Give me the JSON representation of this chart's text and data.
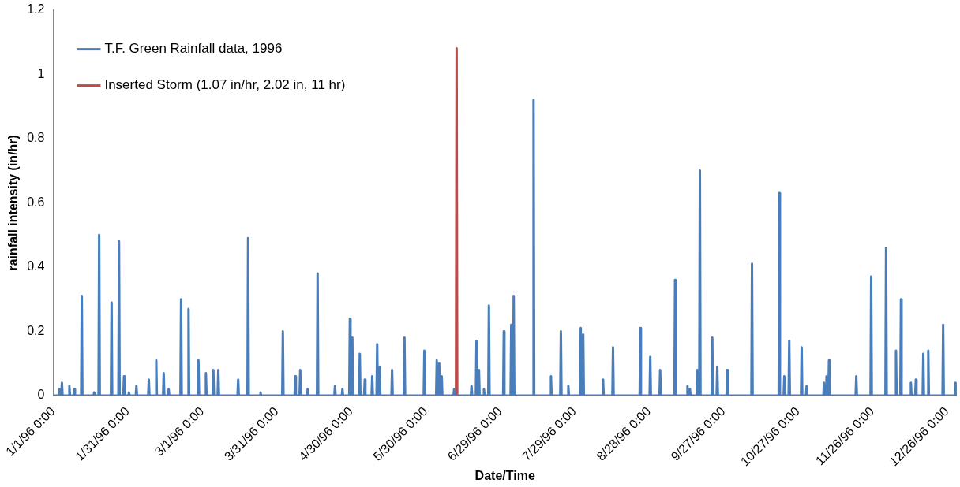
{
  "chart_data": {
    "type": "line",
    "xlabel": "Date/Time",
    "ylabel": "rainfall intensity (in/hr)",
    "xlim": [
      "1996-01-01",
      "1996-12-30"
    ],
    "ylim": [
      0,
      1.2
    ],
    "xticks": [
      {
        "value": "1996-01-01",
        "label": "1/1/96 0:00"
      },
      {
        "value": "1996-01-31",
        "label": "1/31/96 0:00"
      },
      {
        "value": "1996-03-01",
        "label": "3/1/96 0:00"
      },
      {
        "value": "1996-03-31",
        "label": "3/31/96 0:00"
      },
      {
        "value": "1996-04-30",
        "label": "4/30/96 0:00"
      },
      {
        "value": "1996-05-30",
        "label": "5/30/96 0:00"
      },
      {
        "value": "1996-06-29",
        "label": "6/29/96 0:00"
      },
      {
        "value": "1996-07-29",
        "label": "7/29/96 0:00"
      },
      {
        "value": "1996-08-28",
        "label": "8/28/96 0:00"
      },
      {
        "value": "1996-09-27",
        "label": "9/27/96 0:00"
      },
      {
        "value": "1996-10-27",
        "label": "10/27/96 0:00"
      },
      {
        "value": "1996-11-26",
        "label": "11/26/96 0:00"
      },
      {
        "value": "1996-12-26",
        "label": "12/26/96 0:00"
      }
    ],
    "yticks": [
      0,
      0.2,
      0.4,
      0.6,
      0.8,
      1,
      1.2
    ],
    "grid": false,
    "legend": "top left",
    "marker": "none",
    "line_style": "solid",
    "series": [
      {
        "name": "T.F. Green Rainfall data, 1996",
        "color": "#4a7ebb",
        "x": [
          "1996-01-01T00:00",
          "1996-01-03T06:00",
          "1996-01-03T12:00",
          "1996-01-03T18:00",
          "1996-01-04T06:00",
          "1996-01-04T12:00",
          "1996-01-04T18:00",
          "1996-01-07T06:00",
          "1996-01-07T12:00",
          "1996-01-07T18:00",
          "1996-01-09T06:00",
          "1996-01-09T12:00",
          "1996-01-09T18:00",
          "1996-01-12T06:00",
          "1996-01-12T12:00",
          "1996-01-12T18:00",
          "1996-01-17T06:00",
          "1996-01-17T12:00",
          "1996-01-17T18:00",
          "1996-01-19T06:00",
          "1996-01-19T12:00",
          "1996-01-19T18:00",
          "1996-01-24T06:00",
          "1996-01-24T12:00",
          "1996-01-24T18:00",
          "1996-01-27T06:00",
          "1996-01-27T12:00",
          "1996-01-27T18:00",
          "1996-01-29T06:00",
          "1996-01-29T12:00",
          "1996-01-29T18:00",
          "1996-01-31T06:00",
          "1996-01-31T12:00",
          "1996-01-31T18:00",
          "1996-02-03T06:00",
          "1996-02-03T12:00",
          "1996-02-03T18:00",
          "1996-02-08T06:00",
          "1996-02-08T12:00",
          "1996-02-08T18:00",
          "1996-02-11T06:00",
          "1996-02-11T12:00",
          "1996-02-11T18:00",
          "1996-02-14T06:00",
          "1996-02-14T12:00",
          "1996-02-14T18:00",
          "1996-02-16T06:00",
          "1996-02-16T12:00",
          "1996-02-16T18:00",
          "1996-02-21T06:00",
          "1996-02-21T12:00",
          "1996-02-21T18:00",
          "1996-02-24T06:00",
          "1996-02-24T12:00",
          "1996-02-24T18:00",
          "1996-02-28T06:00",
          "1996-02-28T12:00",
          "1996-02-28T18:00",
          "1996-03-02T06:00",
          "1996-03-02T12:00",
          "1996-03-02T18:00",
          "1996-03-05T06:00",
          "1996-03-05T12:00",
          "1996-03-05T18:00",
          "1996-03-07T06:00",
          "1996-03-07T12:00",
          "1996-03-07T18:00",
          "1996-03-15T06:00",
          "1996-03-15T12:00",
          "1996-03-15T18:00",
          "1996-03-19T06:00",
          "1996-03-19T12:00",
          "1996-03-19T18:00",
          "1996-03-24T06:00",
          "1996-03-24T12:00",
          "1996-03-24T18:00",
          "1996-04-02T06:00",
          "1996-04-02T12:00",
          "1996-04-02T18:00",
          "1996-04-07T06:00",
          "1996-04-07T12:00",
          "1996-04-07T18:00",
          "1996-04-09T06:00",
          "1996-04-09T12:00",
          "1996-04-09T18:00",
          "1996-04-12T06:00",
          "1996-04-12T12:00",
          "1996-04-12T18:00",
          "1996-04-16T06:00",
          "1996-04-16T12:00",
          "1996-04-16T18:00",
          "1996-04-23T06:00",
          "1996-04-23T12:00",
          "1996-04-23T18:00",
          "1996-04-26T06:00",
          "1996-04-26T12:00",
          "1996-04-26T18:00",
          "1996-04-29T06:00",
          "1996-04-29T12:00",
          "1996-04-29T18:00",
          "1996-04-30T06:00",
          "1996-04-30T12:00",
          "1996-04-30T18:00",
          "1996-05-03T06:00",
          "1996-05-03T12:00",
          "1996-05-03T18:00",
          "1996-05-05T06:00",
          "1996-05-05T12:00",
          "1996-05-05T18:00",
          "1996-05-08T06:00",
          "1996-05-08T12:00",
          "1996-05-08T18:00",
          "1996-05-10T06:00",
          "1996-05-10T12:00",
          "1996-05-10T18:00",
          "1996-05-11T06:00",
          "1996-05-11T12:00",
          "1996-05-11T18:00",
          "1996-05-16T06:00",
          "1996-05-16T12:00",
          "1996-05-16T18:00",
          "1996-05-21T06:00",
          "1996-05-21T12:00",
          "1996-05-21T18:00",
          "1996-05-29T06:00",
          "1996-05-29T12:00",
          "1996-05-29T18:00",
          "1996-06-03T06:00",
          "1996-06-03T12:00",
          "1996-06-03T18:00",
          "1996-06-04T06:00",
          "1996-06-04T12:00",
          "1996-06-04T18:00",
          "1996-06-05T06:00",
          "1996-06-05T12:00",
          "1996-06-05T18:00",
          "1996-06-10T06:00",
          "1996-06-10T12:00",
          "1996-06-10T18:00",
          "1996-06-17T06:00",
          "1996-06-17T12:00",
          "1996-06-17T18:00",
          "1996-06-19T06:00",
          "1996-06-19T12:00",
          "1996-06-19T18:00",
          "1996-06-20T06:00",
          "1996-06-20T12:00",
          "1996-06-20T18:00",
          "1996-06-22T06:00",
          "1996-06-22T12:00",
          "1996-06-22T18:00",
          "1996-06-24T06:00",
          "1996-06-24T12:00",
          "1996-06-24T18:00",
          "1996-06-30T06:00",
          "1996-06-30T12:00",
          "1996-06-30T18:00",
          "1996-07-03T06:00",
          "1996-07-03T12:00",
          "1996-07-03T18:00",
          "1996-07-04T06:00",
          "1996-07-04T12:00",
          "1996-07-04T18:00",
          "1996-07-12T06:00",
          "1996-07-12T12:00",
          "1996-07-12T18:00",
          "1996-07-19T06:00",
          "1996-07-19T12:00",
          "1996-07-19T18:00",
          "1996-07-23T06:00",
          "1996-07-23T12:00",
          "1996-07-23T18:00",
          "1996-07-26T06:00",
          "1996-07-26T12:00",
          "1996-07-26T18:00",
          "1996-07-31T06:00",
          "1996-07-31T12:00",
          "1996-07-31T18:00",
          "1996-08-01T06:00",
          "1996-08-01T12:00",
          "1996-08-01T18:00",
          "1996-08-09T06:00",
          "1996-08-09T12:00",
          "1996-08-09T18:00",
          "1996-08-13T06:00",
          "1996-08-13T12:00",
          "1996-08-13T18:00",
          "1996-08-24T06:00",
          "1996-08-24T12:00",
          "1996-08-24T18:00",
          "1996-08-28T06:00",
          "1996-08-28T12:00",
          "1996-08-28T18:00",
          "1996-09-01T06:00",
          "1996-09-01T12:00",
          "1996-09-01T18:00",
          "1996-09-07T06:00",
          "1996-09-07T12:00",
          "1996-09-07T18:00",
          "1996-09-12T06:00",
          "1996-09-12T12:00",
          "1996-09-12T18:00",
          "1996-09-13T06:00",
          "1996-09-13T12:00",
          "1996-09-13T18:00",
          "1996-09-16T06:00",
          "1996-09-16T12:00",
          "1996-09-16T18:00",
          "1996-09-17T06:00",
          "1996-09-17T12:00",
          "1996-09-17T18:00",
          "1996-09-22T06:00",
          "1996-09-22T12:00",
          "1996-09-22T18:00",
          "1996-09-24T06:00",
          "1996-09-24T12:00",
          "1996-09-24T18:00",
          "1996-09-28T06:00",
          "1996-09-28T12:00",
          "1996-09-28T18:00",
          "1996-10-08T06:00",
          "1996-10-08T12:00",
          "1996-10-08T18:00",
          "1996-10-19T06:00",
          "1996-10-19T12:00",
          "1996-10-19T18:00",
          "1996-10-21T06:00",
          "1996-10-21T12:00",
          "1996-10-21T18:00",
          "1996-10-23T06:00",
          "1996-10-23T12:00",
          "1996-10-23T18:00",
          "1996-10-28T06:00",
          "1996-10-28T12:00",
          "1996-10-28T18:00",
          "1996-10-30T06:00",
          "1996-10-30T12:00",
          "1996-10-30T18:00",
          "1996-11-06T06:00",
          "1996-11-06T12:00",
          "1996-11-06T18:00",
          "1996-11-07T06:00",
          "1996-11-07T12:00",
          "1996-11-07T18:00",
          "1996-11-08T06:00",
          "1996-11-08T12:00",
          "1996-11-08T18:00",
          "1996-11-19T06:00",
          "1996-11-19T12:00",
          "1996-11-19T18:00",
          "1996-11-25T06:00",
          "1996-11-25T12:00",
          "1996-11-25T18:00",
          "1996-12-01T06:00",
          "1996-12-01T12:00",
          "1996-12-01T18:00",
          "1996-12-05T06:00",
          "1996-12-05T12:00",
          "1996-12-05T18:00",
          "1996-12-07T06:00",
          "1996-12-07T12:00",
          "1996-12-07T18:00",
          "1996-12-11T06:00",
          "1996-12-11T12:00",
          "1996-12-11T18:00",
          "1996-12-13T06:00",
          "1996-12-13T12:00",
          "1996-12-13T18:00",
          "1996-12-16T06:00",
          "1996-12-16T12:00",
          "1996-12-16T18:00",
          "1996-12-18T06:00",
          "1996-12-18T12:00",
          "1996-12-18T18:00",
          "1996-12-24T06:00",
          "1996-12-24T12:00",
          "1996-12-24T18:00",
          "1996-12-29T06:00",
          "1996-12-29T12:00",
          "1996-12-29T18:00",
          "1996-12-30T00:00"
        ],
        "values": [
          0,
          0,
          0.02,
          0,
          0,
          0.04,
          0,
          0,
          0.03,
          0,
          0,
          0.02,
          0,
          0,
          0.31,
          0,
          0,
          0.01,
          0,
          0,
          0.5,
          0,
          0,
          0.29,
          0,
          0,
          0.48,
          0,
          0,
          0.06,
          0,
          0,
          0.01,
          0,
          0,
          0.03,
          0,
          0,
          0.05,
          0,
          0,
          0.11,
          0,
          0,
          0.07,
          0,
          0,
          0.02,
          0,
          0,
          0.3,
          0,
          0,
          0.27,
          0,
          0,
          0.11,
          0,
          0,
          0.07,
          0,
          0,
          0.08,
          0,
          0,
          0.08,
          0,
          0,
          0.05,
          0,
          0,
          0.49,
          0,
          0,
          0.01,
          0,
          0,
          0.2,
          0,
          0,
          0.06,
          0,
          0,
          0.08,
          0,
          0,
          0.02,
          0,
          0,
          0.38,
          0,
          0,
          0.03,
          0,
          0,
          0.02,
          0,
          0,
          0.24,
          0,
          0,
          0.18,
          0,
          0,
          0.13,
          0,
          0,
          0.05,
          0,
          0,
          0.06,
          0,
          0,
          0.16,
          0,
          0,
          0.09,
          0,
          0,
          0.08,
          0,
          0,
          0.18,
          0,
          0,
          0.14,
          0,
          0,
          0.11,
          0,
          0,
          0.1,
          0,
          0,
          0.06,
          0,
          0,
          0.02,
          0,
          0,
          0.03,
          0,
          0,
          0.17,
          0,
          0,
          0.08,
          0,
          0,
          0.02,
          0,
          0,
          0.28,
          0,
          0,
          0.2,
          0,
          0,
          0.22,
          0,
          0,
          0.31,
          0,
          0,
          0.92,
          0,
          0,
          0.06,
          0,
          0,
          0.2,
          0,
          0,
          0.03,
          0,
          0,
          0.21,
          0,
          0,
          0.19,
          0,
          0,
          0.05,
          0,
          0,
          0.15,
          0,
          0,
          0.21,
          0,
          0,
          0.12,
          0,
          0,
          0.08,
          0,
          0,
          0.36,
          0,
          0,
          0.03,
          0,
          0,
          0.02,
          0,
          0,
          0.08,
          0,
          0,
          0.7,
          0,
          0,
          0.18,
          0,
          0,
          0.09,
          0,
          0,
          0.08,
          0,
          0,
          0.41,
          0,
          0,
          0.63,
          0,
          0,
          0.06,
          0,
          0,
          0.17,
          0,
          0,
          0.15,
          0,
          0,
          0.03,
          0,
          0,
          0.04,
          0,
          0,
          0.06,
          0,
          0,
          0.11,
          0,
          0,
          0.06,
          0,
          0,
          0.37,
          0,
          0,
          0.46,
          0,
          0,
          0.14,
          0,
          0,
          0.3,
          0,
          0,
          0.04,
          0,
          0,
          0.05,
          0,
          0,
          0.13,
          0,
          0,
          0.14,
          0,
          0,
          0.22,
          0,
          0,
          0.04,
          0,
          0
        ]
      },
      {
        "name": "Inserted Storm (1.07 in/hr, 2.02 in, 11 hr)",
        "color": "#be4b48",
        "x": [
          "1996-06-11T06:00",
          "1996-06-11T12:00",
          "1996-06-11T18:00"
        ],
        "values": [
          0,
          1.08,
          0
        ]
      }
    ]
  }
}
